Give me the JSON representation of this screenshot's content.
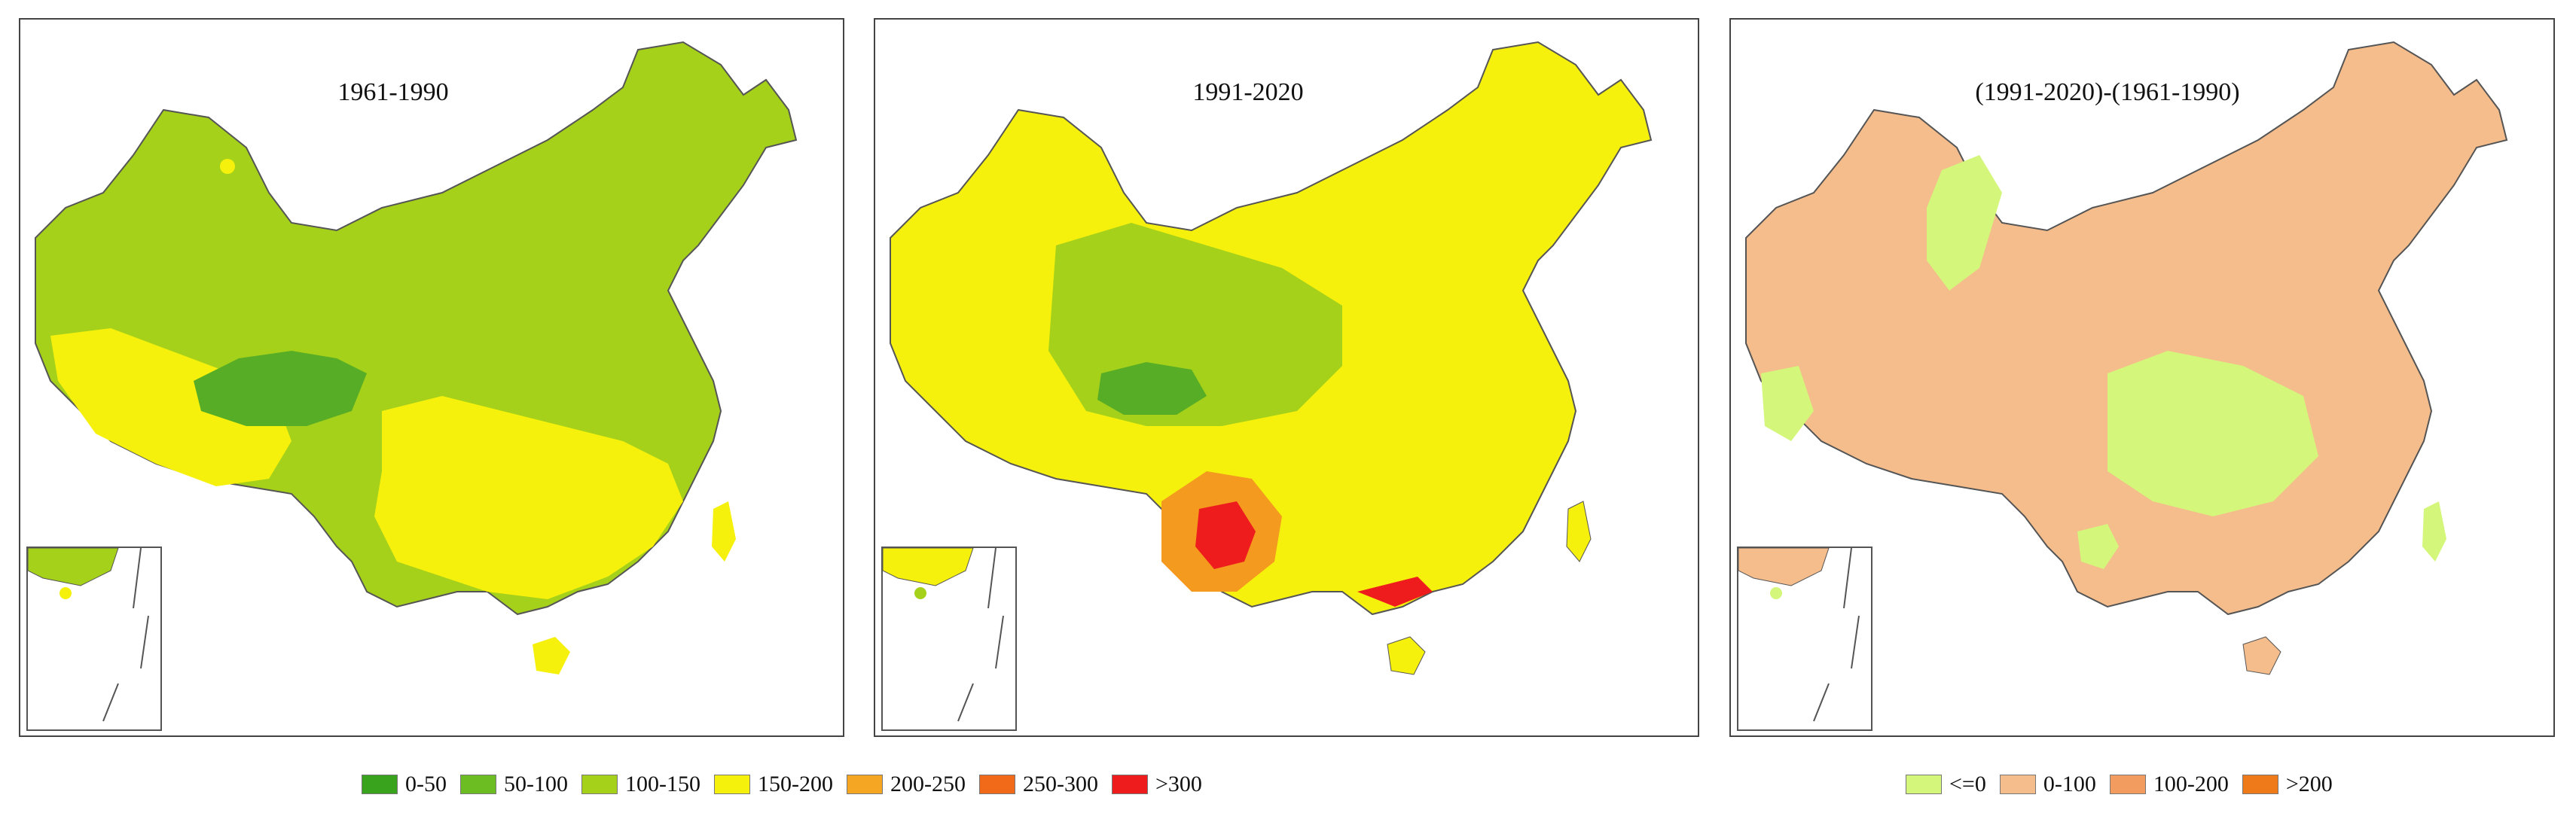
{
  "panels": [
    {
      "title": "1961-1990",
      "base_color": "#a5d11a",
      "regions": [
        {
          "name": "tibet-south",
          "color": "#f5f10c"
        },
        {
          "name": "qinghai-core",
          "color": "#57ad25"
        },
        {
          "name": "south-china",
          "color": "#f5f10c"
        },
        {
          "name": "hotspot",
          "color": "#e8372d"
        }
      ]
    },
    {
      "title": "1991-2020",
      "base_color": "#f5f10c",
      "regions": [
        {
          "name": "central-band",
          "color": "#a5d11a"
        },
        {
          "name": "qinghai-core",
          "color": "#57ad25"
        },
        {
          "name": "yunnan",
          "color": "#f39a1f"
        },
        {
          "name": "yunnan-core",
          "color": "#ee1c1c"
        }
      ]
    },
    {
      "title": "(1991-2020)-(1961-1990)",
      "base_color": "#f6bd8c",
      "regions": [
        {
          "name": "xinjiang-east",
          "color": "#d3f67b"
        },
        {
          "name": "central",
          "color": "#d3f67b"
        },
        {
          "name": "yunnan",
          "color": "#f29d5f"
        }
      ]
    }
  ],
  "legend_absolute": [
    {
      "label": "0-50",
      "color": "#3aa31e"
    },
    {
      "label": "50-100",
      "color": "#6cbd22"
    },
    {
      "label": "100-150",
      "color": "#a5d11a"
    },
    {
      "label": "150-200",
      "color": "#f5f10c"
    },
    {
      "label": "200-250",
      "color": "#f5a623"
    },
    {
      "label": "250-300",
      "color": "#f06a1a"
    },
    {
      "label": ">300",
      "color": "#ee1c1c"
    }
  ],
  "legend_difference": [
    {
      "label": "<=0",
      "color": "#d3f67b"
    },
    {
      "label": "0-100",
      "color": "#f6bd8c"
    },
    {
      "label": "100-200",
      "color": "#f29d5f"
    },
    {
      "label": ">200",
      "color": "#ee7a1a"
    }
  ]
}
